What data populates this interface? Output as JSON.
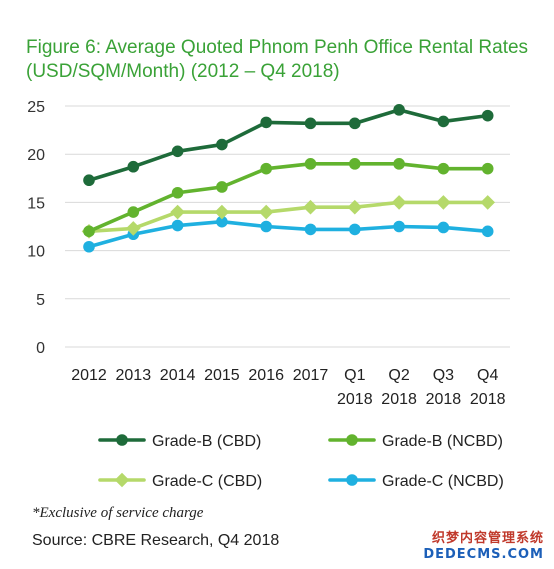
{
  "title_line1": "Figure 6: Average Quoted Phnom Penh Office Rental Rates",
  "title_line2": "(USD/SQM/Month) (2012 – Q4 2018)",
  "footnote": "*Exclusive of service charge",
  "source": "Source: CBRE Research,  Q4 2018",
  "watermark": {
    "line1": "织梦内容管理系统",
    "line2": "DEDECMS.COM"
  },
  "chart_data": {
    "type": "line",
    "title": "Figure 6: Average Quoted Phnom Penh Office Rental Rates (USD/SQM/Month) (2012 – Q4 2018)",
    "xlabel": "",
    "ylabel": "",
    "categories": [
      [
        "2012"
      ],
      [
        "2013"
      ],
      [
        "2014"
      ],
      [
        "2015"
      ],
      [
        "2016"
      ],
      [
        "2017"
      ],
      [
        "Q1",
        "2018"
      ],
      [
        "Q2",
        "2018"
      ],
      [
        "Q3",
        "2018"
      ],
      [
        "Q4",
        "2018"
      ]
    ],
    "ylim": [
      0,
      25
    ],
    "yticks": [
      0,
      5,
      10,
      15,
      20,
      25
    ],
    "grid": true,
    "legend_position": "bottom",
    "series": [
      {
        "name": "Grade-B (CBD)",
        "color": "#1e6b3a",
        "marker": "circle",
        "values": [
          17.3,
          18.7,
          20.3,
          21.0,
          23.3,
          23.2,
          23.2,
          24.6,
          23.4,
          24.0
        ]
      },
      {
        "name": "Grade-B (NCBD)",
        "color": "#62b32e",
        "marker": "circle",
        "values": [
          12.0,
          14.0,
          16.0,
          16.6,
          18.5,
          19.0,
          19.0,
          19.0,
          18.5,
          18.5
        ]
      },
      {
        "name": "Grade-C (CBD)",
        "color": "#b5d96a",
        "marker": "diamond",
        "values": [
          12.0,
          12.3,
          14.0,
          14.0,
          14.0,
          14.5,
          14.5,
          15.0,
          15.0,
          15.0
        ]
      },
      {
        "name": "Grade-C (NCBD)",
        "color": "#1fb0e0",
        "marker": "circle",
        "values": [
          10.4,
          11.7,
          12.6,
          13.0,
          12.5,
          12.2,
          12.2,
          12.5,
          12.4,
          12.0
        ]
      }
    ]
  }
}
